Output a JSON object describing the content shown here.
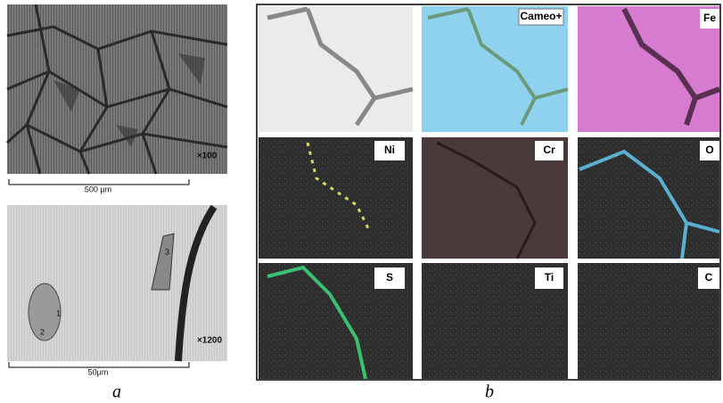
{
  "panel_a": {
    "top_image": {
      "magnification": "×100",
      "scale_bar": "500 μm"
    },
    "bottom_image": {
      "magnification": "×1200",
      "scale_bar": "50μm",
      "markers": [
        "1",
        "2",
        "3"
      ]
    },
    "caption": "a"
  },
  "panel_b": {
    "maps": {
      "cameo": "Cameo+",
      "fe": "Fe",
      "ni": "Ni",
      "cr": "Cr",
      "o": "O",
      "s": "S",
      "ti": "Ti",
      "c": "C"
    },
    "caption": "b"
  }
}
